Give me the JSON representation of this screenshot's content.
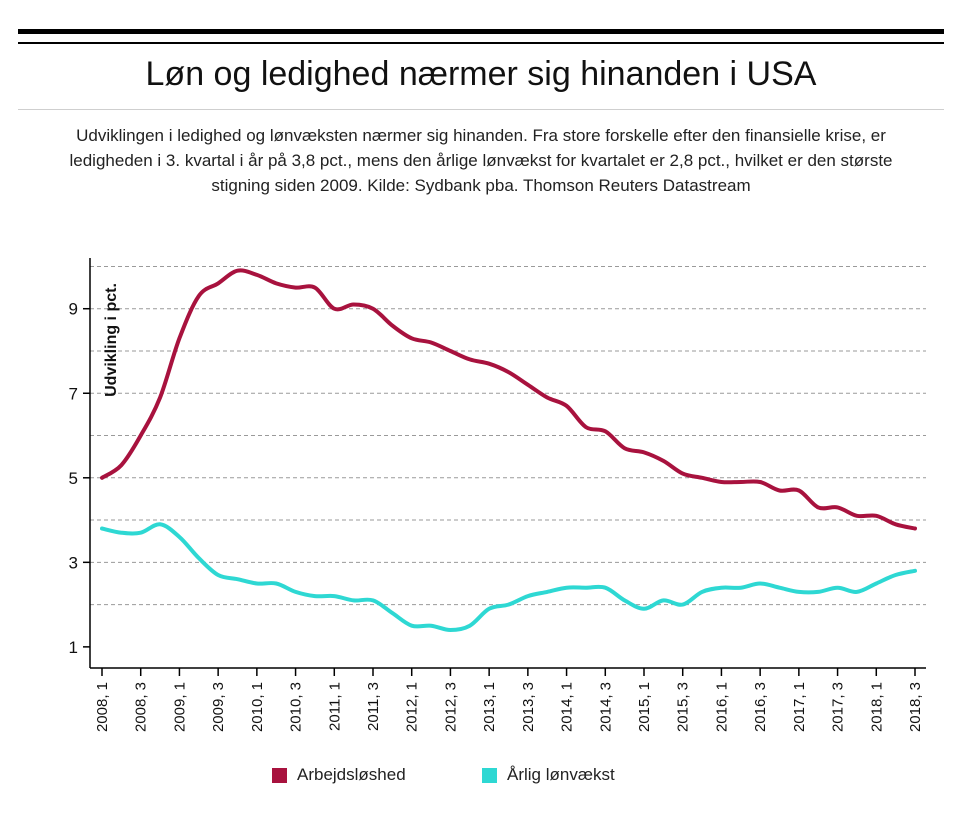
{
  "header": {
    "title": "Løn og ledighed nærmer sig hinanden i USA",
    "subtitle": "Udviklingen i ledighed og lønvæksten nærmer sig hinanden. Fra store forskelle efter den finansielle krise, er ledigheden i 3. kvartal i år på 3,8 pct., mens den årlige lønvækst for kvartalet er 2,8 pct., hvilket er den største stigning siden 2009. Kilde: Sydbank pba. Thomson Reuters Datastream"
  },
  "colors": {
    "unemployment": "#a8123e",
    "wages": "#2ed8d3"
  },
  "chart_data": {
    "type": "line",
    "ylabel": "Udvikling i pct.",
    "xlabel": "",
    "ylim": [
      0.5,
      10.2
    ],
    "yticks": [
      1,
      3,
      5,
      7,
      9
    ],
    "ygrid": [
      2,
      3,
      4,
      5,
      6,
      7,
      8,
      9,
      10
    ],
    "grid": true,
    "legend_position": "bottom",
    "xtick_labels": [
      "2008, 1",
      "2008, 3",
      "2009, 1",
      "2009, 3",
      "2010, 1",
      "2010, 3",
      "2011, 1",
      "2011, 3",
      "2012, 1",
      "2012, 3",
      "2013, 1",
      "2013, 3",
      "2014, 1",
      "2014, 3",
      "2015, 1",
      "2015, 3",
      "2016, 1",
      "2016, 3",
      "2017, 1",
      "2017, 3",
      "2018, 1",
      "2018, 3"
    ],
    "series": [
      {
        "name": "Arbejdsløshed",
        "color_key": "unemployment",
        "x": [
          0,
          0.5,
          1,
          1.5,
          2,
          2.5,
          3,
          3.5,
          4,
          4.5,
          5,
          5.5,
          6,
          6.5,
          7,
          7.5,
          8,
          8.5,
          9,
          9.5,
          10,
          10.5,
          11,
          11.5,
          12,
          12.5,
          13,
          13.5,
          14,
          14.5,
          15,
          15.5,
          16,
          16.5,
          17,
          17.5,
          18,
          18.5,
          19,
          19.5,
          20,
          20.5,
          21
        ],
        "values": [
          5.0,
          5.3,
          6.0,
          6.9,
          8.3,
          9.3,
          9.6,
          9.9,
          9.8,
          9.6,
          9.5,
          9.5,
          9.0,
          9.1,
          9.0,
          8.6,
          8.3,
          8.2,
          8.0,
          7.8,
          7.7,
          7.5,
          7.2,
          6.9,
          6.7,
          6.2,
          6.1,
          5.7,
          5.6,
          5.4,
          5.1,
          5.0,
          4.9,
          4.9,
          4.9,
          4.7,
          4.7,
          4.3,
          4.3,
          4.1,
          4.1,
          3.9,
          3.8
        ]
      },
      {
        "name": "Årlig lønvækst",
        "color_key": "wages",
        "x": [
          0,
          0.5,
          1,
          1.5,
          2,
          2.5,
          3,
          3.5,
          4,
          4.5,
          5,
          5.5,
          6,
          6.5,
          7,
          7.5,
          8,
          8.5,
          9,
          9.5,
          10,
          10.5,
          11,
          11.5,
          12,
          12.5,
          13,
          13.5,
          14,
          14.5,
          15,
          15.5,
          16,
          16.5,
          17,
          17.5,
          18,
          18.5,
          19,
          19.5,
          20,
          20.5,
          21
        ],
        "values": [
          3.8,
          3.7,
          3.7,
          3.9,
          3.6,
          3.1,
          2.7,
          2.6,
          2.5,
          2.5,
          2.3,
          2.2,
          2.2,
          2.1,
          2.1,
          1.8,
          1.5,
          1.5,
          1.4,
          1.5,
          1.9,
          2.0,
          2.2,
          2.3,
          2.4,
          2.4,
          2.4,
          2.1,
          1.9,
          2.1,
          2.0,
          2.3,
          2.4,
          2.4,
          2.5,
          2.4,
          2.3,
          2.3,
          2.4,
          2.3,
          2.5,
          2.7,
          2.8
        ]
      }
    ]
  }
}
